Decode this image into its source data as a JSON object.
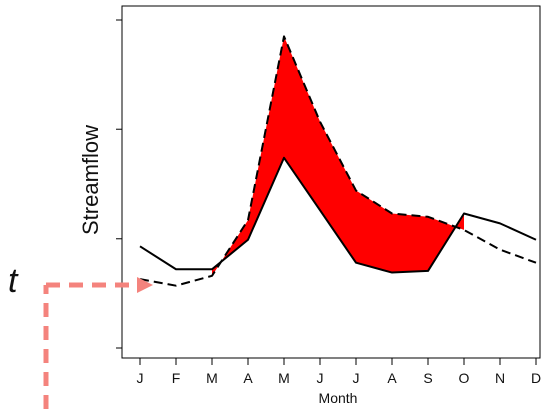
{
  "chart_data": {
    "type": "line",
    "xlabel": "Month",
    "ylabel": "Streamflow",
    "categories": [
      "J",
      "F",
      "M",
      "A",
      "M",
      "J",
      "J",
      "A",
      "S",
      "O",
      "N",
      "D"
    ],
    "ylim": [
      0,
      100
    ],
    "y_ticks": [
      0,
      33.3,
      66.7,
      100
    ],
    "y_tick_labels_shown": false,
    "grid": false,
    "series": [
      {
        "style": "solid",
        "color": "#000000",
        "values": [
          31,
          24,
          24,
          33,
          58,
          42,
          26,
          23,
          23.5,
          41,
          38,
          33
        ]
      },
      {
        "style": "dashed",
        "color": "#000000",
        "values": [
          21,
          19,
          22,
          39,
          95,
          69,
          48,
          41,
          40,
          36,
          30,
          26
        ]
      }
    ],
    "fill_between": {
      "color": "#ff0000",
      "from_index": 2,
      "to_index": 9,
      "upper": "dashed",
      "lower": "solid"
    },
    "annotation": {
      "label": "t",
      "color": "#f4837d"
    }
  }
}
